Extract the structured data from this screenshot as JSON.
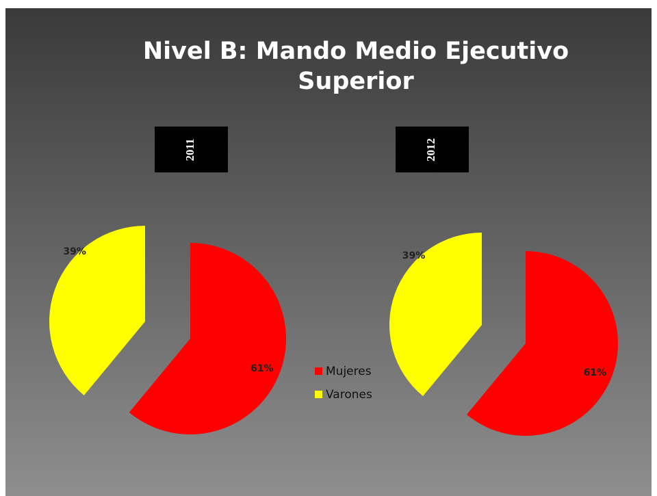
{
  "title": "Nivel B: Mando Medio Ejecutivo Superior",
  "chart_data": [
    {
      "type": "pie",
      "title": "2011",
      "categories": [
        "Mujeres",
        "Varones"
      ],
      "values": [
        61,
        39
      ],
      "value_labels": [
        "61%",
        "39%"
      ],
      "colors": [
        "#ff0000",
        "#ffff00"
      ],
      "legend": "center"
    },
    {
      "type": "pie",
      "title": "2012",
      "categories": [
        "Mujeres",
        "Varones"
      ],
      "values": [
        61,
        39
      ],
      "value_labels": [
        "61%",
        "39%"
      ],
      "colors": [
        "#ff0000",
        "#ffff00"
      ]
    }
  ]
}
